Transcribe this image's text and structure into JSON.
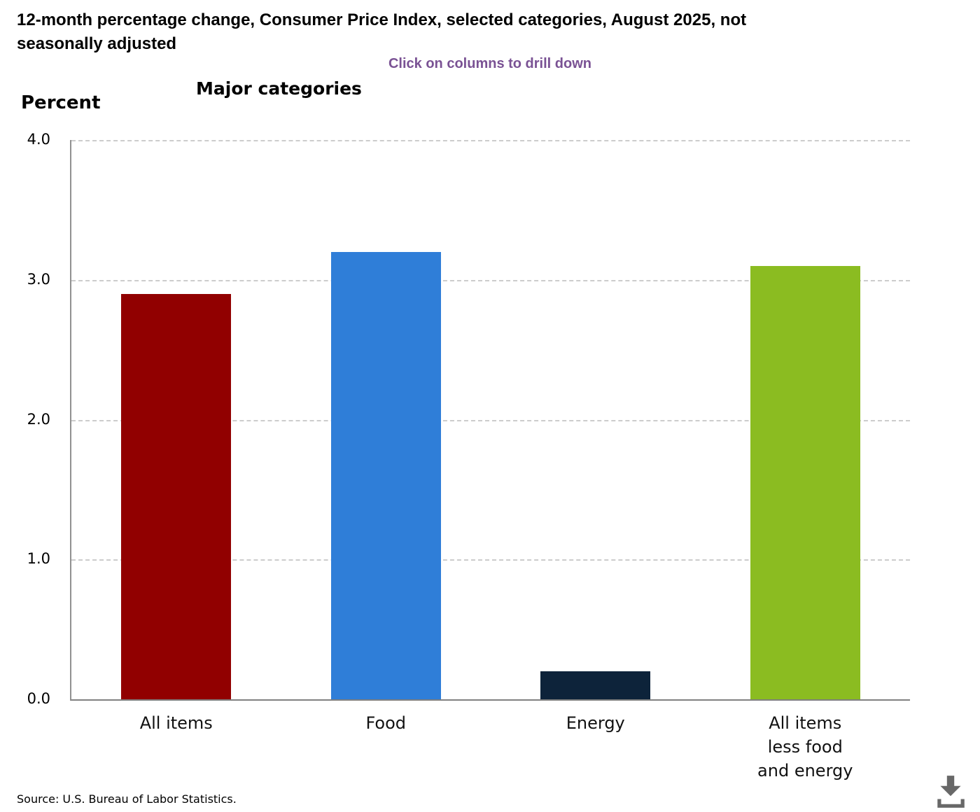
{
  "title": "12-month percentage change, Consumer Price Index, selected categories, August 2025, not seasonally adjusted",
  "subtitle": "Click on columns to drill down",
  "source": "Source: U.S. Bureau of Labor Statistics.",
  "icons": {
    "download": "download-icon"
  },
  "colors": {
    "subtitle_text": "#7a5294",
    "y_axis_line": "#919191",
    "baseline": "#808080",
    "gridline": "#cccccc",
    "download_icon": "#686868"
  },
  "chart_data": {
    "type": "bar",
    "title": "Major categories",
    "ylabel": "Percent",
    "xlabel": "",
    "ylim": [
      0,
      4.0
    ],
    "yticks": [
      4.0,
      3.0,
      2.0,
      1.0,
      0.0
    ],
    "grid": "horizontal dashed",
    "legend": "none",
    "annotation": "Click on columns to drill down",
    "categories": [
      "All items",
      "Food",
      "Energy",
      "All items less food and energy"
    ],
    "category_tick_lines": [
      [
        "All items"
      ],
      [
        "Food"
      ],
      [
        "Energy"
      ],
      [
        "All items",
        "less food",
        "and energy"
      ]
    ],
    "values": [
      2.9,
      3.2,
      0.2,
      3.1
    ],
    "bar_colors": [
      "#910000",
      "#2f7ed8",
      "#0d233a",
      "#8bbc21"
    ]
  }
}
